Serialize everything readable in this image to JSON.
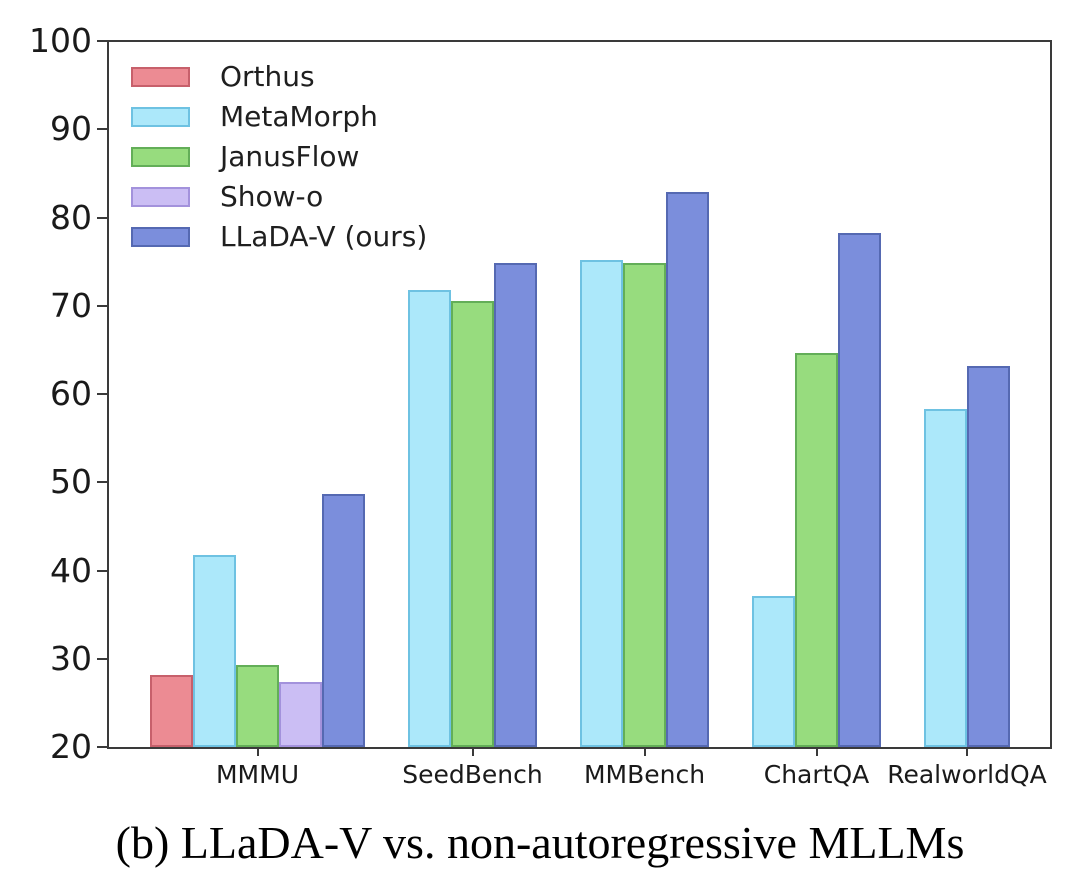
{
  "figure": {
    "caption": "(b) LLaDA-V vs. non-autoregressive MLLMs"
  },
  "chart_data": {
    "type": "bar",
    "title": "",
    "xlabel": "",
    "ylabel": "",
    "categories": [
      "MMMU",
      "SeedBench",
      "MMBench",
      "ChartQA",
      "RealworldQA"
    ],
    "series": [
      {
        "name": "Orthus",
        "fill": "#ec8b93",
        "edge": "#c7606b",
        "values": [
          28.2,
          null,
          null,
          null,
          null
        ]
      },
      {
        "name": "MetaMorph",
        "fill": "#ace8fa",
        "edge": "#6ec2e2",
        "values": [
          41.8,
          71.8,
          75.2,
          37.1,
          58.3
        ]
      },
      {
        "name": "JanusFlow",
        "fill": "#97dc7e",
        "edge": "#63ae58",
        "values": [
          29.3,
          70.5,
          74.9,
          64.6,
          null
        ]
      },
      {
        "name": "Show-o",
        "fill": "#cbbef4",
        "edge": "#a392dc",
        "values": [
          27.4,
          null,
          null,
          null,
          null
        ]
      },
      {
        "name": "LLaDA-V (ours)",
        "fill": "#7b8edc",
        "edge": "#5569b2",
        "values": [
          48.7,
          74.8,
          82.9,
          78.3,
          63.2
        ]
      }
    ],
    "ylim": [
      20,
      100
    ],
    "yticks": [
      20,
      30,
      40,
      50,
      60,
      70,
      80,
      90,
      100
    ],
    "grid": false,
    "legend_position": "upper left",
    "axis_color": "#3a3a3a"
  }
}
